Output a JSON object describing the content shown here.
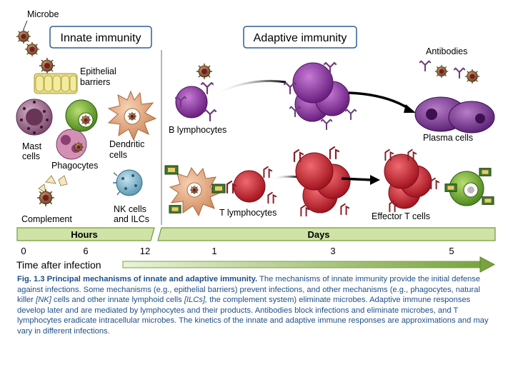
{
  "headers": {
    "innate": "Innate immunity",
    "adaptive": "Adaptive immunity"
  },
  "labels": {
    "microbe": "Microbe",
    "epithelial_1": "Epithelial",
    "epithelial_2": "barriers",
    "mast_1": "Mast",
    "mast_2": "cells",
    "phagocytes": "Phagocytes",
    "dendritic_1": "Dendritic",
    "dendritic_2": "cells",
    "complement": "Complement",
    "nk_1": "NK cells",
    "nk_2": "and ILCs",
    "b_lymphocytes": "B lymphocytes",
    "t_lymphocytes": "T lymphocytes",
    "antibodies": "Antibodies",
    "plasma_cells": "Plasma cells",
    "effector_t": "Effector T cells"
  },
  "timeline": {
    "hours_label": "Hours",
    "days_label": "Days",
    "ticks": [
      "0",
      "6",
      "12",
      "1",
      "3",
      "5"
    ],
    "axis_label": "Time after infection"
  },
  "caption": {
    "label": "Fig. 1.3",
    "title": "Principal mechanisms of innate and adaptive immunity.",
    "t1": " The mechanisms of innate immunity provide the initial defense against infections. Some mechanisms (e.g., epithelial barriers) prevent infections, and other mechanisms (e.g., phagocytes, natural killer ",
    "nk_italic": "[NK]",
    "t2": " cells and other innate lymphoid cells ",
    "ilc_italic": "[ILCs],",
    "t3": " the complement system) eliminate microbes. Adaptive immune responses develop later and are mediated by lymphocytes and their products. Antibodies block infections and eliminate microbes, and T lymphocytes eradicate intracellular microbes. The kinetics of the innate and adaptive immune responses are approximations and may vary in different infections."
  },
  "colors": {
    "header_border": "#2e5c99",
    "timeline_fill": "#cfe3a6",
    "timeline_stroke": "#6f9a3c",
    "arrow_green": "#7aa33f",
    "caption_blue": "#1e4f86",
    "b_cell": "#8b3a9e",
    "t_cell": "#c8283a",
    "macrophage": "#7fb33a",
    "dendritic": "#e0a07a",
    "nk_cell": "#7fb6cf",
    "mast_cell": "#a07090",
    "epithelium": "#e6dc8a",
    "microbe": "#8a6a3a"
  }
}
